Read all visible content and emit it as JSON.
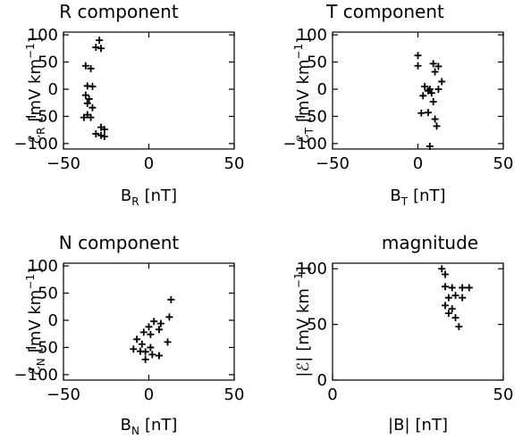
{
  "chart_data": [
    {
      "type": "scatter",
      "title": "R component",
      "xlabel": {
        "main": "B",
        "sub": "R",
        "unit": "[nT]"
      },
      "ylabel": {
        "main": "ℰ",
        "sub": "R",
        "unit": "[mV km",
        "sup": "−1",
        "close": "]"
      },
      "xlim": [
        -50,
        50
      ],
      "ylim": [
        -110,
        105
      ],
      "xticks": [
        -50,
        0,
        50
      ],
      "yticks": [
        -100,
        -50,
        0,
        50,
        100
      ],
      "grid": false,
      "points": [
        [
          -29,
          90
        ],
        [
          -31,
          77
        ],
        [
          -28,
          75
        ],
        [
          -37,
          43
        ],
        [
          -34,
          38
        ],
        [
          -36,
          6
        ],
        [
          -33,
          5
        ],
        [
          -37,
          -11
        ],
        [
          -35,
          -18
        ],
        [
          -36,
          -26
        ],
        [
          -33,
          -34
        ],
        [
          -36,
          -47
        ],
        [
          -38,
          -52
        ],
        [
          -34,
          -52
        ],
        [
          -28,
          -70
        ],
        [
          -26,
          -74
        ],
        [
          -31,
          -82
        ],
        [
          -28,
          -85
        ],
        [
          -26,
          -87
        ]
      ]
    },
    {
      "type": "scatter",
      "title": "T component",
      "xlabel": {
        "main": "B",
        "sub": "T",
        "unit": "[nT]"
      },
      "ylabel": {
        "main": "ℰ",
        "sub": "T",
        "unit": "[mV km",
        "sup": "−1",
        "close": "]"
      },
      "xlim": [
        -50,
        50
      ],
      "ylim": [
        -110,
        105
      ],
      "xticks": [
        -50,
        0,
        50
      ],
      "yticks": [
        -100,
        -50,
        0,
        50,
        100
      ],
      "grid": false,
      "points": [
        [
          0,
          62
        ],
        [
          0,
          43
        ],
        [
          9,
          47
        ],
        [
          12,
          42
        ],
        [
          10,
          32
        ],
        [
          14,
          14
        ],
        [
          4,
          5
        ],
        [
          7,
          0
        ],
        [
          12,
          0
        ],
        [
          6,
          -3
        ],
        [
          8,
          -7
        ],
        [
          3,
          -12
        ],
        [
          9,
          -23
        ],
        [
          6,
          -43
        ],
        [
          2,
          -44
        ],
        [
          10,
          -55
        ],
        [
          11,
          -68
        ],
        [
          7,
          -105
        ]
      ]
    },
    {
      "type": "scatter",
      "title": "N component",
      "xlabel": {
        "main": "B",
        "sub": "N",
        "unit": "[nT]"
      },
      "ylabel": {
        "main": "ℰ",
        "sub": "N",
        "unit": "[mV km",
        "sup": "−1",
        "close": "]"
      },
      "xlim": [
        -50,
        50
      ],
      "ylim": [
        -110,
        105
      ],
      "xticks": [
        -50,
        0,
        50
      ],
      "yticks": [
        -100,
        -50,
        0,
        50,
        100
      ],
      "grid": false,
      "points": [
        [
          13,
          38
        ],
        [
          12,
          6
        ],
        [
          3,
          -2
        ],
        [
          7,
          -6
        ],
        [
          0,
          -12
        ],
        [
          6,
          -17
        ],
        [
          -3,
          -22
        ],
        [
          1,
          -26
        ],
        [
          -7,
          -35
        ],
        [
          11,
          -40
        ],
        [
          -4,
          -44
        ],
        [
          1,
          -50
        ],
        [
          -9,
          -53
        ],
        [
          -5,
          -57
        ],
        [
          -2,
          -58
        ],
        [
          2,
          -63
        ],
        [
          6,
          -65
        ],
        [
          -2,
          -72
        ]
      ]
    },
    {
      "type": "scatter",
      "title": "magnitude",
      "xlabel": {
        "main": "|B|",
        "sub": "",
        "unit": "[nT]"
      },
      "ylabel": {
        "main": "|ℰ|",
        "sub": "",
        "unit": "[mV km",
        "sup": "−1",
        "close": "]"
      },
      "xlim": [
        0,
        50
      ],
      "ylim": [
        0,
        105
      ],
      "xticks": [
        0,
        50
      ],
      "yticks": [
        0,
        50,
        100
      ],
      "grid": false,
      "points": [
        [
          32,
          100
        ],
        [
          33,
          95
        ],
        [
          33,
          84
        ],
        [
          35,
          83
        ],
        [
          38,
          83
        ],
        [
          40,
          83
        ],
        [
          36,
          76
        ],
        [
          34,
          74
        ],
        [
          38,
          74
        ],
        [
          33,
          67
        ],
        [
          35,
          64
        ],
        [
          34,
          60
        ],
        [
          36,
          56
        ],
        [
          37,
          48
        ]
      ]
    }
  ]
}
